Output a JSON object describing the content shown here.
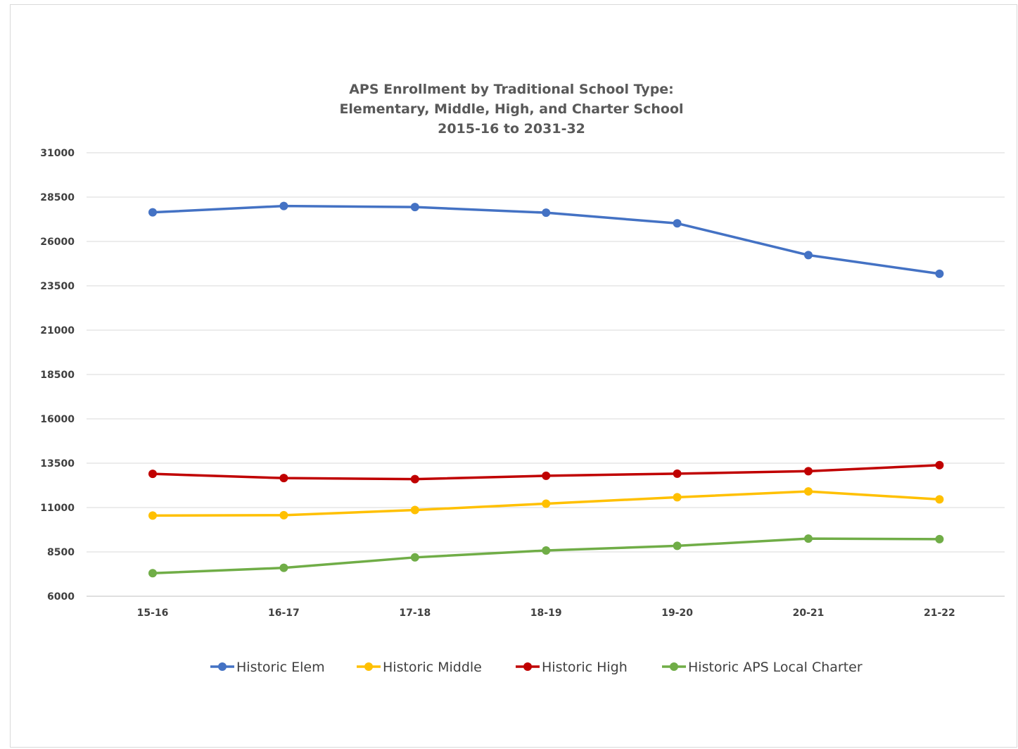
{
  "chart_data": {
    "type": "line",
    "title": [
      "APS Enrollment by Traditional School Type:",
      "Elementary, Middle, High, and Charter School",
      "2015-16 to 2031-32"
    ],
    "categories": [
      "15-16",
      "16-17",
      "17-18",
      "18-19",
      "19-20",
      "20-21",
      "21-22"
    ],
    "ylim": [
      6000,
      31000
    ],
    "yticks": [
      6000,
      8500,
      11000,
      13500,
      16000,
      18500,
      21000,
      23500,
      26000,
      28500,
      31000
    ],
    "grid": true,
    "legend_position": "bottom",
    "series": [
      {
        "name": "Historic Elem",
        "color": "#4472c4",
        "values": [
          27640,
          28000,
          27940,
          27620,
          27020,
          25230,
          24180
        ]
      },
      {
        "name": "Historic Middle",
        "color": "#ffc000",
        "values": [
          10550,
          10570,
          10860,
          11220,
          11580,
          11910,
          11460
        ]
      },
      {
        "name": "Historic High",
        "color": "#c00000",
        "values": [
          12900,
          12660,
          12600,
          12790,
          12910,
          13050,
          13390
        ]
      },
      {
        "name": "Historic APS Local Charter",
        "color": "#70ad47",
        "values": [
          7300,
          7600,
          8190,
          8580,
          8840,
          9250,
          9220
        ]
      }
    ]
  }
}
